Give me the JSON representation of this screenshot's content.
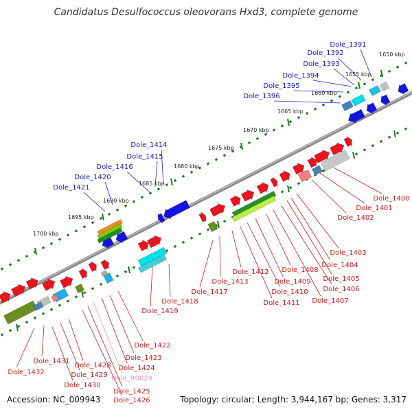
{
  "title": "Candidatus Desulfococcus oleovorans Hxd3, complete genome",
  "footer": {
    "accession": "Accession: NC_009943",
    "topology": "Topology: circular; Length: 3,944,167 bp; Genes: 3,317"
  },
  "colors": {
    "backbone": "#808080",
    "track_dots": "#1a7a1a",
    "upper_label": "#1a1acc",
    "lower_label": "#cc1a1a",
    "rna_label": "#e890c8",
    "forward_gene": "#e8141e",
    "reverse_gene": "#1414e0"
  },
  "scale_ticks": [
    "1650 kbp",
    "1655 kbp",
    "1660 kbp",
    "1665 kbp",
    "1670 kbp",
    "1675 kbp",
    "1680 kbp",
    "1685 kbp",
    "1690 kbp",
    "1695 kbp",
    "1700 kbp"
  ],
  "upper_labels": [
    "Dole_1391",
    "Dole_1392",
    "Dole_1393",
    "Dole_1394",
    "Dole_1395",
    "Dole_1396",
    "Dole_1414",
    "Dole_1415",
    "Dole_1416",
    "Dole_1420",
    "Dole_1421"
  ],
  "lower_labels": [
    "Dole_1400",
    "Dole_1401",
    "Dole_1402",
    "Dole_1403",
    "Dole_1404",
    "Dole_1405",
    "Dole_1406",
    "Dole_1407",
    "Dole_1408",
    "Dole_1409",
    "Dole_1410",
    "Dole_1411",
    "Dole_1412",
    "Dole_1413",
    "Dole_1417",
    "Dole_1418",
    "Dole_1419",
    "Dole_1422",
    "Dole_1423",
    "Dole_1424",
    "Dole_R0024",
    "Dole_1425",
    "Dole_1426",
    "Dole_1428",
    "Dole_1429",
    "Dole_1430",
    "Dole_1431",
    "Dole_1432"
  ]
}
